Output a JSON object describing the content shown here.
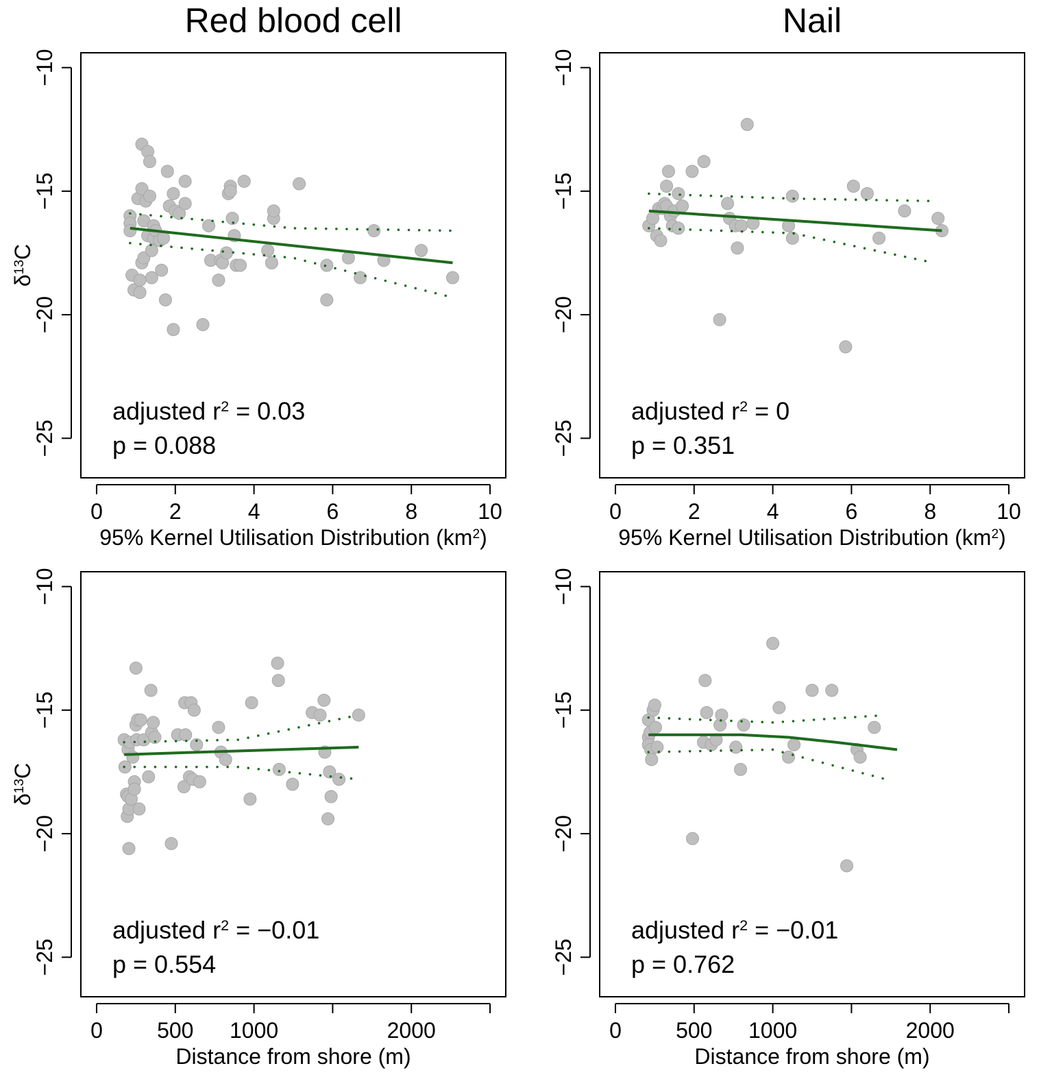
{
  "column_titles": [
    "Red blood cell",
    "Nail"
  ],
  "colors": {
    "points": "#BEBEBE",
    "points_stroke": "#A8A8A8",
    "fit": "#1E6B1E",
    "axis": "#000000"
  },
  "chart_data": [
    {
      "type": "scatter",
      "title": "Red blood cell",
      "xlabel": "95% Kernel Utilisation Distribution (km",
      "xlabel_sup": "2",
      "xlabel_after": ")",
      "ylabel": "δ",
      "ylabel_sup": "13",
      "ylabel_after": "C",
      "xlim": [
        -0.4,
        10.4
      ],
      "ylim": [
        -26.6,
        -9.4
      ],
      "xticks": [
        0,
        2,
        4,
        6,
        8,
        10
      ],
      "xtick_labels": [
        "0",
        "2",
        "4",
        "6",
        "8",
        "10"
      ],
      "yticks": [
        -10,
        -15,
        -20,
        -25
      ],
      "ytick_labels": [
        "−10",
        "−15",
        "−20",
        "−25"
      ],
      "annotation_r2_label": "adjusted r",
      "annotation_r2_sup": "2",
      "annotation_r2_value": " = 0.03",
      "annotation_p": "p = 0.088",
      "x": [
        0.85,
        0.85,
        0.85,
        0.9,
        0.95,
        1.05,
        1.1,
        1.1,
        1.15,
        1.15,
        1.15,
        1.2,
        1.2,
        1.25,
        1.3,
        1.3,
        1.35,
        1.35,
        1.4,
        1.4,
        1.45,
        1.45,
        1.5,
        1.6,
        1.65,
        1.7,
        1.75,
        1.8,
        1.85,
        1.95,
        1.95,
        2.0,
        2.1,
        2.25,
        2.25,
        2.7,
        2.85,
        2.9,
        3.1,
        3.15,
        3.2,
        3.3,
        3.35,
        3.4,
        3.4,
        3.45,
        3.5,
        3.55,
        3.65,
        3.75,
        4.35,
        4.45,
        4.5,
        4.5,
        5.15,
        5.85,
        5.85,
        6.4,
        6.7,
        7.05,
        7.3,
        8.25,
        9.05
      ],
      "y": [
        -16.0,
        -16.3,
        -16.6,
        -18.4,
        -19.0,
        -15.3,
        -18.6,
        -19.1,
        -13.1,
        -14.9,
        -17.9,
        -16.2,
        -17.7,
        -15.4,
        -13.4,
        -16.8,
        -13.8,
        -15.2,
        -18.5,
        -17.4,
        -16.4,
        -16.9,
        -16.6,
        -17.0,
        -18.2,
        -16.9,
        -19.4,
        -14.2,
        -15.6,
        -15.1,
        -20.6,
        -15.8,
        -15.9,
        -15.5,
        -14.6,
        -20.4,
        -16.4,
        -17.8,
        -18.6,
        -17.8,
        -17.9,
        -17.5,
        -15.1,
        -14.8,
        -15.0,
        -16.1,
        -16.8,
        -18.0,
        -18.0,
        -14.6,
        -17.4,
        -17.9,
        -16.1,
        -15.8,
        -14.7,
        -18.0,
        -19.4,
        -17.7,
        -18.5,
        -16.6,
        -17.8,
        -17.4,
        -18.5
      ],
      "fit": {
        "x0": 0.85,
        "y0": -16.5,
        "x1": 9.05,
        "y1": -17.9
      },
      "ci_upper": [
        [
          0.85,
          -15.9
        ],
        [
          5.0,
          -16.5
        ],
        [
          9.05,
          -16.6
        ]
      ],
      "ci_lower": [
        [
          0.85,
          -17.1
        ],
        [
          5.0,
          -17.7
        ],
        [
          9.05,
          -19.3
        ]
      ]
    },
    {
      "type": "scatter",
      "title": "Nail",
      "xlabel": "95% Kernel Utilisation Distribution (km",
      "xlabel_sup": "2",
      "xlabel_after": ")",
      "ylabel": "",
      "ylabel_sup": "",
      "ylabel_after": "",
      "xlim": [
        -0.4,
        10.4
      ],
      "ylim": [
        -26.6,
        -9.4
      ],
      "xticks": [
        0,
        2,
        4,
        6,
        8,
        10
      ],
      "xtick_labels": [
        "0",
        "2",
        "4",
        "6",
        "8",
        "10"
      ],
      "yticks": [
        -10,
        -15,
        -20,
        -25
      ],
      "ytick_labels": [
        "−10",
        "−15",
        "−20",
        "−25"
      ],
      "annotation_r2_label": "adjusted r",
      "annotation_r2_sup": "2",
      "annotation_r2_value": " = 0",
      "annotation_p": "p = 0.351",
      "x": [
        0.85,
        0.95,
        1.05,
        1.1,
        1.15,
        1.2,
        1.25,
        1.3,
        1.3,
        1.35,
        1.4,
        1.45,
        1.5,
        1.6,
        1.6,
        1.7,
        1.95,
        2.25,
        2.65,
        2.85,
        2.9,
        3.05,
        3.1,
        3.2,
        3.35,
        3.5,
        4.4,
        4.5,
        4.5,
        5.85,
        6.05,
        6.4,
        6.7,
        7.35,
        8.2,
        8.3
      ],
      "y": [
        -16.4,
        -16.1,
        -16.8,
        -15.7,
        -17.0,
        -15.7,
        -15.5,
        -14.8,
        -15.6,
        -14.2,
        -16.0,
        -16.4,
        -15.8,
        -15.1,
        -16.5,
        -15.6,
        -14.2,
        -13.8,
        -20.2,
        -15.5,
        -16.1,
        -16.4,
        -17.3,
        -16.4,
        -12.3,
        -16.3,
        -16.4,
        -16.9,
        -15.2,
        -21.3,
        -14.8,
        -15.1,
        -16.9,
        -15.8,
        -16.1,
        -16.6
      ],
      "fit": {
        "x0": 0.85,
        "y0": -15.8,
        "x1": 8.3,
        "y1": -16.6
      },
      "ci_upper": [
        [
          0.85,
          -15.1
        ],
        [
          4.5,
          -15.3
        ],
        [
          8.1,
          -15.4
        ]
      ],
      "ci_lower": [
        [
          0.85,
          -16.5
        ],
        [
          4.5,
          -16.7
        ],
        [
          8.1,
          -17.9
        ]
      ]
    },
    {
      "type": "scatter",
      "title": "",
      "xlabel": "Distance from shore (m)",
      "xlabel_sup": "",
      "xlabel_after": "",
      "ylabel": "δ",
      "ylabel_sup": "13",
      "ylabel_after": "C",
      "xlim": [
        -100,
        2600
      ],
      "ylim": [
        -26.6,
        -9.4
      ],
      "xticks": [
        0,
        500,
        1000,
        1500,
        2000,
        2500
      ],
      "xtick_labels": [
        "0",
        "500",
        "1000",
        "",
        "2000",
        ""
      ],
      "yticks": [
        -10,
        -15,
        -20,
        -25
      ],
      "ytick_labels": [
        "−10",
        "−15",
        "−20",
        "−25"
      ],
      "annotation_r2_label": "adjusted r",
      "annotation_r2_sup": "2",
      "annotation_r2_value": " = −0.01",
      "annotation_p": "p = 0.554",
      "x": [
        175,
        180,
        190,
        195,
        200,
        200,
        205,
        205,
        210,
        220,
        230,
        240,
        240,
        250,
        250,
        255,
        260,
        270,
        280,
        300,
        330,
        345,
        350,
        360,
        370,
        475,
        515,
        555,
        560,
        565,
        590,
        600,
        610,
        620,
        635,
        655,
        775,
        790,
        820,
        975,
        985,
        1150,
        1155,
        1160,
        1245,
        1370,
        1420,
        1445,
        1450,
        1470,
        1480,
        1490,
        1540,
        1665
      ],
      "y": [
        -16.2,
        -17.3,
        -18.4,
        -19.3,
        -16.6,
        -18.5,
        -20.6,
        -19.0,
        -16.3,
        -18.6,
        -16.9,
        -17.9,
        -18.2,
        -15.6,
        -13.3,
        -16.2,
        -15.4,
        -19.0,
        -15.4,
        -16.2,
        -17.7,
        -14.2,
        -15.9,
        -15.5,
        -16.1,
        -20.4,
        -16.0,
        -18.1,
        -14.7,
        -16.0,
        -17.7,
        -14.7,
        -17.8,
        -15.0,
        -16.4,
        -17.9,
        -15.7,
        -16.7,
        -17.0,
        -18.6,
        -14.7,
        -13.1,
        -13.8,
        -17.4,
        -18.0,
        -15.1,
        -15.2,
        -14.6,
        -16.7,
        -19.4,
        -17.5,
        -18.5,
        -17.8,
        -15.2
      ],
      "fit": {
        "x0": 175,
        "y0": -16.8,
        "x1": 1665,
        "y1": -16.5
      },
      "ci_upper": [
        [
          175,
          -16.3
        ],
        [
          900,
          -16.2
        ],
        [
          1665,
          -15.2
        ]
      ],
      "ci_lower": [
        [
          175,
          -17.3
        ],
        [
          900,
          -17.3
        ],
        [
          1665,
          -17.8
        ]
      ]
    },
    {
      "type": "scatter",
      "title": "",
      "xlabel": "Distance from shore (m)",
      "xlabel_sup": "",
      "xlabel_after": "",
      "ylabel": "",
      "ylabel_sup": "",
      "ylabel_after": "",
      "xlim": [
        -100,
        2600
      ],
      "ylim": [
        -26.6,
        -9.4
      ],
      "xticks": [
        0,
        500,
        1000,
        1500,
        2000,
        2500
      ],
      "xtick_labels": [
        "0",
        "500",
        "1000",
        "",
        "2000",
        ""
      ],
      "yticks": [
        -10,
        -15,
        -20,
        -25
      ],
      "ytick_labels": [
        "−10",
        "−15",
        "−20",
        "−25"
      ],
      "annotation_r2_label": "adjusted r",
      "annotation_r2_sup": "2",
      "annotation_r2_value": " = −0.01",
      "annotation_p": "p = 0.762",
      "x": [
        210,
        210,
        210,
        220,
        225,
        230,
        240,
        250,
        255,
        265,
        490,
        560,
        570,
        580,
        610,
        640,
        665,
        675,
        765,
        795,
        815,
        1000,
        1040,
        1100,
        1135,
        1250,
        1375,
        1470,
        1535,
        1555,
        1645
      ],
      "y": [
        -15.4,
        -16.1,
        -16.4,
        -15.9,
        -16.6,
        -17.0,
        -15.0,
        -14.8,
        -15.7,
        -16.5,
        -20.2,
        -16.3,
        -13.8,
        -15.1,
        -16.4,
        -16.2,
        -15.6,
        -15.2,
        -16.5,
        -17.4,
        -15.6,
        -12.3,
        -14.9,
        -16.9,
        -16.4,
        -14.2,
        -14.2,
        -21.3,
        -16.6,
        -16.9,
        -15.7
      ],
      "fit": [
        [
          210,
          -16.0
        ],
        [
          800,
          -16.0
        ],
        [
          1100,
          -16.1
        ],
        [
          1400,
          -16.3
        ],
        [
          1790,
          -16.6
        ]
      ],
      "ci_upper": [
        [
          210,
          -15.3
        ],
        [
          1000,
          -15.5
        ],
        [
          1720,
          -15.2
        ]
      ],
      "ci_lower": [
        [
          210,
          -16.7
        ],
        [
          1000,
          -16.6
        ],
        [
          1720,
          -17.8
        ]
      ]
    }
  ]
}
